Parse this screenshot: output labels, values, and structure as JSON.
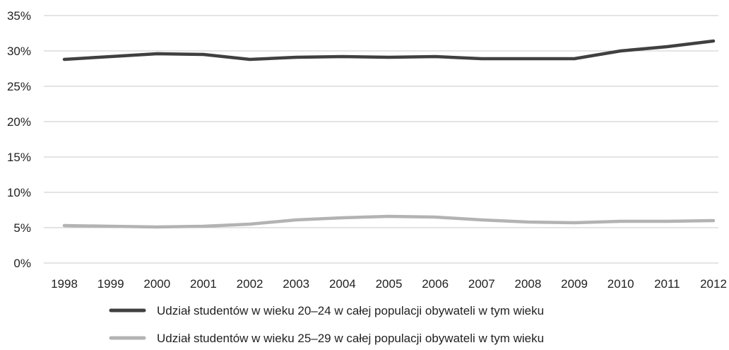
{
  "chart_data": {
    "type": "line",
    "title": "",
    "xlabel": "",
    "ylabel": "",
    "x": [
      "1998",
      "1999",
      "2000",
      "2001",
      "2002",
      "2003",
      "2004",
      "2005",
      "2006",
      "2007",
      "2008",
      "2009",
      "2010",
      "2011",
      "2012"
    ],
    "yticks": [
      "0%",
      "5%",
      "10%",
      "15%",
      "20%",
      "25%",
      "30%",
      "35%"
    ],
    "ylim": [
      0,
      35
    ],
    "grid": "horizontal",
    "legend_position": "bottom",
    "series": [
      {
        "name": "Udział studentów w wieku 20–24 w całej populacji obywateli w tym wieku",
        "color": "#404040",
        "values": [
          28.8,
          29.2,
          29.6,
          29.5,
          28.8,
          29.1,
          29.2,
          29.1,
          29.2,
          28.9,
          28.9,
          28.9,
          30.0,
          30.6,
          31.4
        ]
      },
      {
        "name": "Udział studentów w wieku 25–29 w całej populacji obywateli w tym wieku",
        "color": "#b3b3b3",
        "values": [
          5.3,
          5.2,
          5.1,
          5.2,
          5.5,
          6.1,
          6.4,
          6.6,
          6.5,
          6.1,
          5.8,
          5.7,
          5.9,
          5.9,
          6.0
        ]
      }
    ]
  }
}
